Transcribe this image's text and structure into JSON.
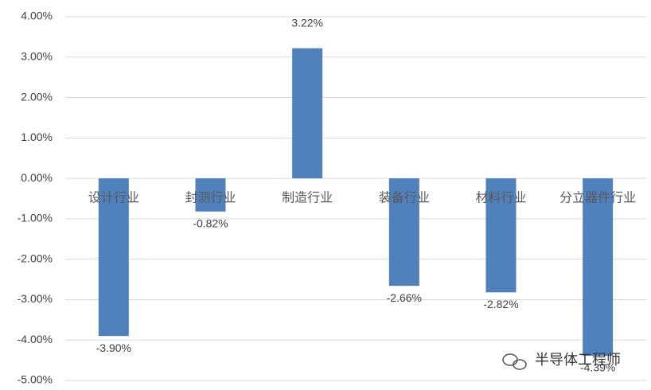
{
  "chart_data": {
    "type": "bar",
    "categories": [
      "设计行业",
      "封测行业",
      "制造行业",
      "装备行业",
      "材料行业",
      "分立器件行业"
    ],
    "values": [
      -3.9,
      -0.82,
      3.22,
      -2.66,
      -2.82,
      -4.39
    ],
    "value_labels": [
      "-3.90%",
      "-0.82%",
      "3.22%",
      "-2.66%",
      "-2.82%",
      "-4.39%"
    ],
    "color": "#4f81bd",
    "ylim": [
      -5,
      4
    ],
    "yticks": [
      {
        "value": 4,
        "label": "4.00%"
      },
      {
        "value": 3,
        "label": "3.00%"
      },
      {
        "value": 2,
        "label": "2.00%"
      },
      {
        "value": 1,
        "label": "1.00%"
      },
      {
        "value": 0,
        "label": "0.00%"
      },
      {
        "value": -1,
        "label": "-1.00%"
      },
      {
        "value": -2,
        "label": "-2.00%"
      },
      {
        "value": -3,
        "label": "-3.00%"
      },
      {
        "value": -4,
        "label": "-4.00%"
      },
      {
        "value": -5,
        "label": "-5.00%"
      }
    ],
    "grid": true,
    "watermark": "半导体工程师"
  }
}
